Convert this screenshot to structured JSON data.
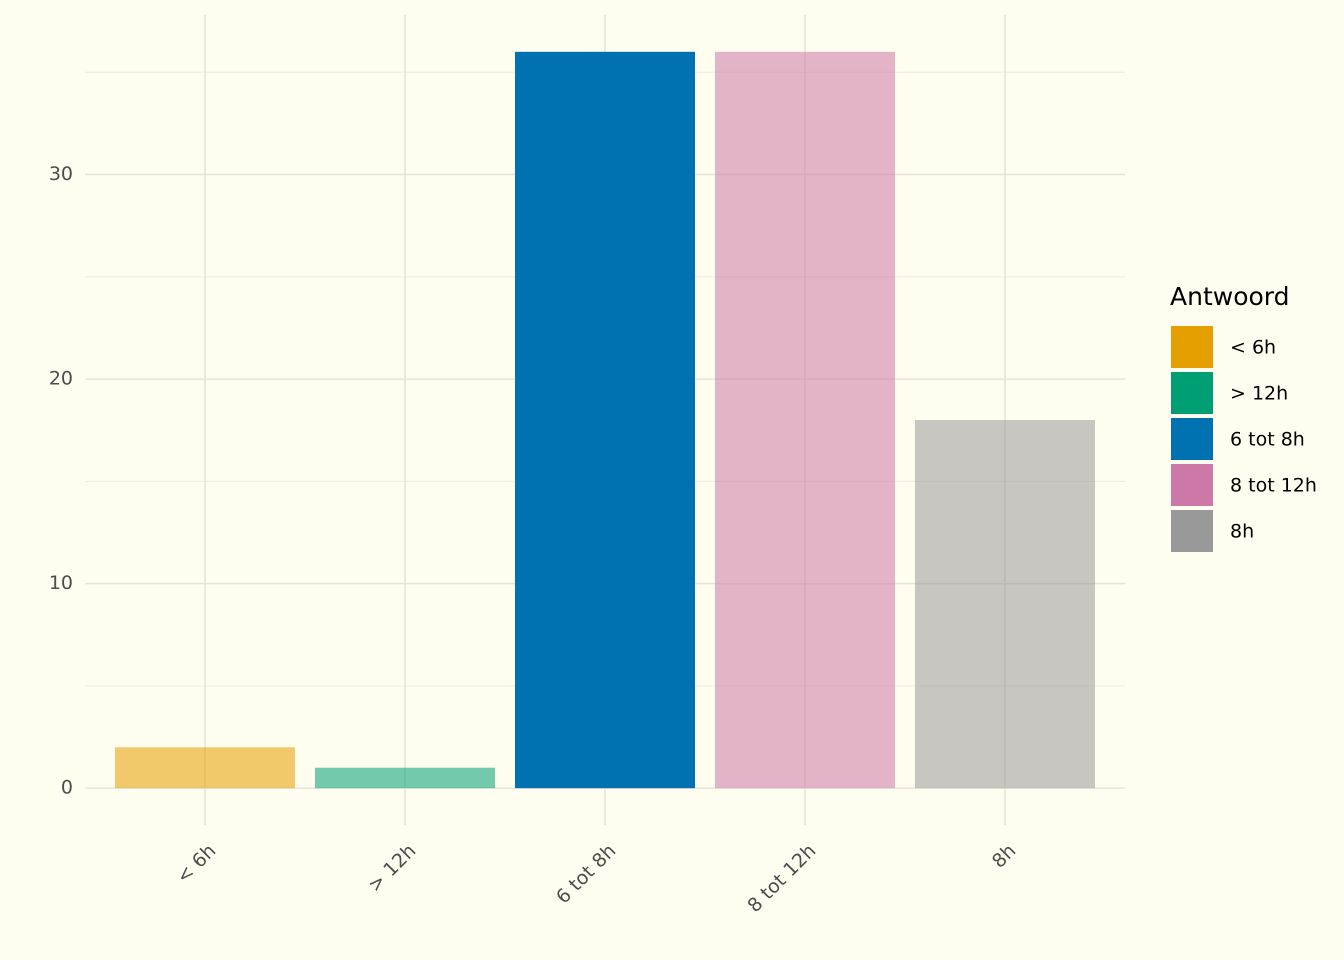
{
  "chart_data": {
    "type": "bar",
    "categories": [
      "< 6h",
      "> 12h",
      "6 tot 8h",
      "8 tot 12h",
      "8h"
    ],
    "values": [
      2,
      1,
      36,
      36,
      18
    ],
    "colors": [
      "#E69F00",
      "#009E73",
      "#0072B2",
      "#CC79A7",
      "#999999"
    ],
    "opacity": [
      0.55,
      0.55,
      1,
      0.55,
      0.55
    ],
    "legend_title": "Antwoord",
    "legend_position": "right",
    "ylim": [
      -1.8,
      37.8
    ],
    "yticks": [
      0,
      10,
      20,
      30
    ],
    "minor_yticks": [
      5,
      15,
      25,
      35
    ],
    "grid": true
  }
}
